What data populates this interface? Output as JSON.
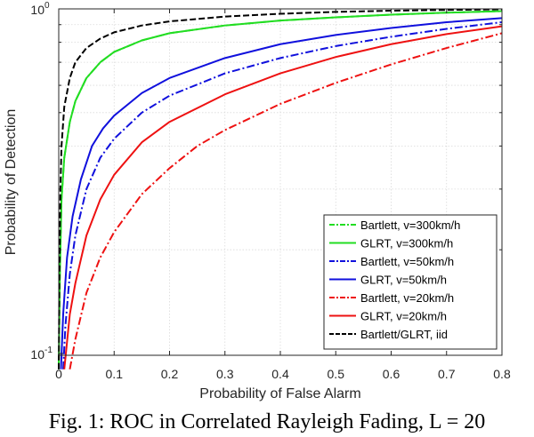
{
  "chart_data": {
    "type": "line",
    "title": "",
    "xlabel": "Probability of False Alarm",
    "ylabel": "Probability of Detection",
    "xlim": [
      0,
      0.8
    ],
    "ylim": [
      0.09,
      1.0
    ],
    "yscale": "log",
    "grid": true,
    "legend_position": "bottom-right",
    "x_ticks": [
      "0",
      "0.1",
      "0.2",
      "0.3",
      "0.4",
      "0.5",
      "0.6",
      "0.7",
      "0.8"
    ],
    "y_ticks": [
      "10",
      "10"
    ],
    "y_tick_exponents": [
      "-1",
      "0"
    ],
    "series": [
      {
        "name": "Bartlett, v=300km/h",
        "color": "#22dd22",
        "style": "dashdot",
        "x": [
          0.0,
          0.002,
          0.005,
          0.01,
          0.02,
          0.03,
          0.05,
          0.075,
          0.1,
          0.15,
          0.2,
          0.3,
          0.4,
          0.5,
          0.6,
          0.7,
          0.8
        ],
        "y": [
          0.09,
          0.17,
          0.28,
          0.37,
          0.47,
          0.54,
          0.63,
          0.7,
          0.75,
          0.81,
          0.85,
          0.895,
          0.925,
          0.945,
          0.962,
          0.975,
          0.985
        ]
      },
      {
        "name": "GLRT, v=300km/h",
        "color": "#22dd22",
        "style": "solid",
        "x": [
          0.0,
          0.002,
          0.005,
          0.01,
          0.02,
          0.03,
          0.05,
          0.075,
          0.1,
          0.15,
          0.2,
          0.3,
          0.4,
          0.5,
          0.6,
          0.7,
          0.8
        ],
        "y": [
          0.09,
          0.17,
          0.28,
          0.37,
          0.47,
          0.54,
          0.63,
          0.7,
          0.75,
          0.81,
          0.85,
          0.895,
          0.925,
          0.945,
          0.962,
          0.975,
          0.985
        ]
      },
      {
        "name": "Bartlett, v=50km/h",
        "color": "#1010dd",
        "style": "dashdot",
        "x": [
          0.008,
          0.012,
          0.02,
          0.03,
          0.05,
          0.075,
          0.1,
          0.15,
          0.2,
          0.3,
          0.4,
          0.5,
          0.6,
          0.7,
          0.8
        ],
        "y": [
          0.09,
          0.12,
          0.17,
          0.22,
          0.3,
          0.37,
          0.42,
          0.5,
          0.56,
          0.65,
          0.72,
          0.78,
          0.83,
          0.875,
          0.915
        ]
      },
      {
        "name": "GLRT, v=50km/h",
        "color": "#1010dd",
        "style": "solid",
        "x": [
          0.004,
          0.008,
          0.015,
          0.025,
          0.04,
          0.06,
          0.08,
          0.1,
          0.15,
          0.2,
          0.3,
          0.4,
          0.5,
          0.6,
          0.7,
          0.8
        ],
        "y": [
          0.09,
          0.13,
          0.19,
          0.25,
          0.32,
          0.4,
          0.45,
          0.49,
          0.57,
          0.63,
          0.72,
          0.79,
          0.84,
          0.88,
          0.915,
          0.94
        ]
      },
      {
        "name": "Bartlett, v=20km/h",
        "color": "#ee1111",
        "style": "dashdot",
        "x": [
          0.02,
          0.03,
          0.05,
          0.075,
          0.1,
          0.15,
          0.2,
          0.25,
          0.3,
          0.4,
          0.5,
          0.6,
          0.7,
          0.8
        ],
        "y": [
          0.09,
          0.11,
          0.15,
          0.19,
          0.225,
          0.29,
          0.345,
          0.4,
          0.445,
          0.53,
          0.61,
          0.69,
          0.77,
          0.85
        ]
      },
      {
        "name": "GLRT, v=20km/h",
        "color": "#ee1111",
        "style": "solid",
        "x": [
          0.01,
          0.02,
          0.03,
          0.05,
          0.075,
          0.1,
          0.15,
          0.2,
          0.3,
          0.4,
          0.5,
          0.6,
          0.7,
          0.8
        ],
        "y": [
          0.09,
          0.13,
          0.16,
          0.22,
          0.28,
          0.33,
          0.41,
          0.47,
          0.565,
          0.65,
          0.725,
          0.79,
          0.845,
          0.89
        ]
      },
      {
        "name": "Bartlett/GLRT, iid",
        "color": "#000000",
        "style": "dashed",
        "x": [
          0.0,
          0.001,
          0.003,
          0.005,
          0.01,
          0.02,
          0.03,
          0.05,
          0.075,
          0.1,
          0.15,
          0.2,
          0.3,
          0.4,
          0.5,
          0.6,
          0.7,
          0.8
        ],
        "y": [
          0.09,
          0.16,
          0.3,
          0.4,
          0.52,
          0.63,
          0.7,
          0.77,
          0.82,
          0.855,
          0.895,
          0.92,
          0.95,
          0.968,
          0.98,
          0.988,
          0.993,
          0.997
        ]
      }
    ]
  },
  "caption": "Fig. 1: ROC in Correlated Rayleigh Fading, L = 20"
}
